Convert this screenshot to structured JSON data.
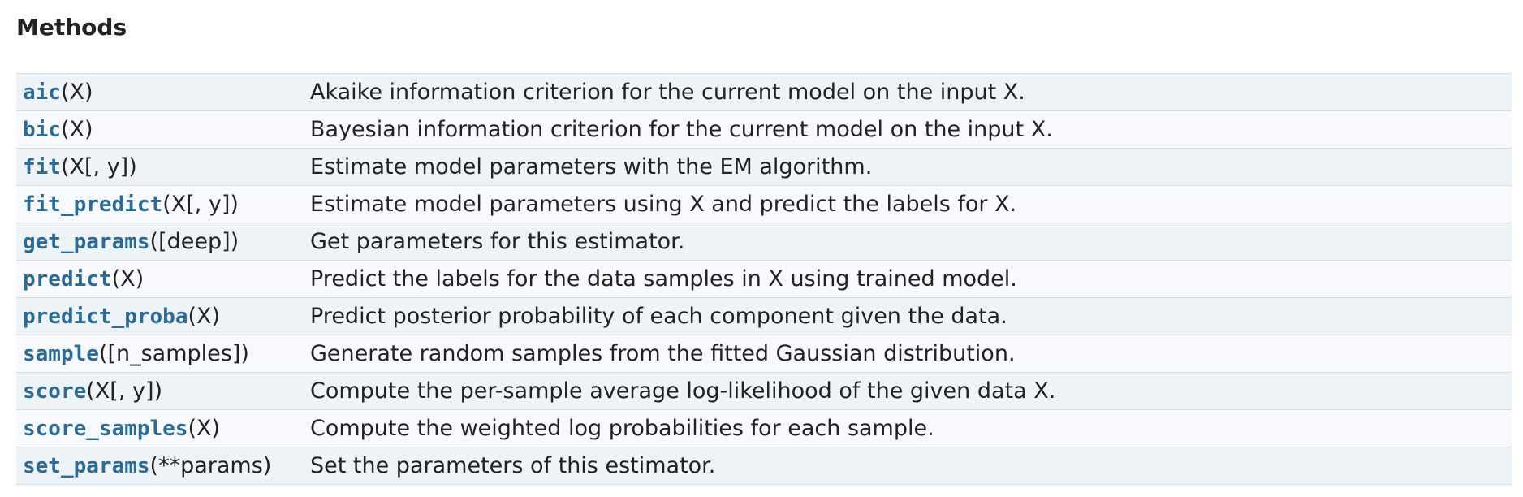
{
  "section": {
    "title": "Methods"
  },
  "methods": [
    {
      "name": "aic",
      "args": "(X)",
      "description": "Akaike information criterion for the current model on the input X."
    },
    {
      "name": "bic",
      "args": "(X)",
      "description": "Bayesian information criterion for the current model on the input X."
    },
    {
      "name": "fit",
      "args": "(X[, y])",
      "description": "Estimate model parameters with the EM algorithm."
    },
    {
      "name": "fit_predict",
      "args": "(X[, y])",
      "description": "Estimate model parameters using X and predict the labels for X."
    },
    {
      "name": "get_params",
      "args": "([deep])",
      "description": "Get parameters for this estimator."
    },
    {
      "name": "predict",
      "args": "(X)",
      "description": "Predict the labels for the data samples in X using trained model."
    },
    {
      "name": "predict_proba",
      "args": "(X)",
      "description": "Predict posterior probability of each component given the data."
    },
    {
      "name": "sample",
      "args": "([n_samples])",
      "description": "Generate random samples from the fitted Gaussian distribution."
    },
    {
      "name": "score",
      "args": "(X[, y])",
      "description": "Compute the per-sample average log-likelihood of the given data X."
    },
    {
      "name": "score_samples",
      "args": "(X)",
      "description": "Compute the weighted log probabilities for each sample."
    },
    {
      "name": "set_params",
      "args": "(**params)",
      "description": "Set the parameters of this estimator."
    }
  ],
  "colors": {
    "link": "#2d6b94",
    "row_odd": "#eef3f8",
    "row_even": "#f7f9fc",
    "border": "#d8dee4",
    "text": "#222222"
  }
}
